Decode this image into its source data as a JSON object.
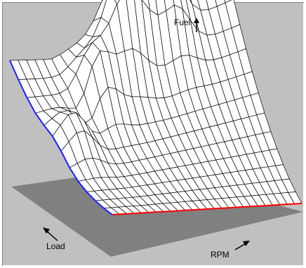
{
  "labels": {
    "fuel": "Fuel",
    "load": "Load",
    "rpm": "RPM"
  },
  "colors": {
    "background": "#c0c0c0",
    "floor": "#808080",
    "surface_fill": "#ffffff",
    "mesh_line": "#000000",
    "load_edge": "#1e1eff",
    "rpm_edge": "#ff0000"
  },
  "surface": {
    "rows": 13,
    "cols": 27
  }
}
